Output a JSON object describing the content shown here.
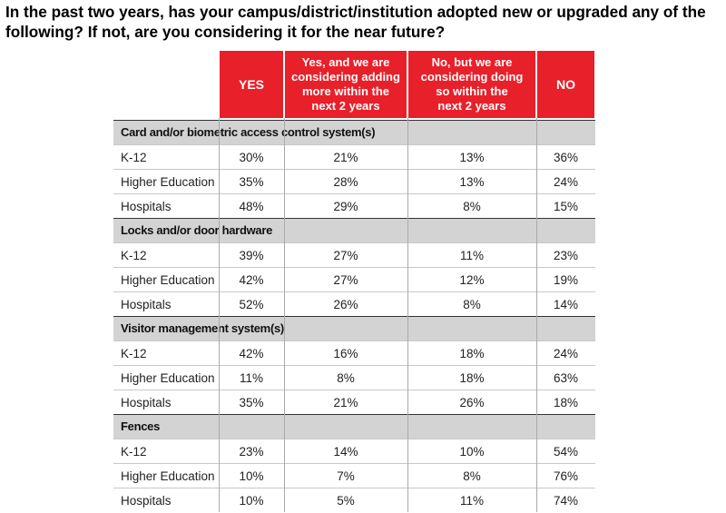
{
  "title": "In the past two years, has your campus/district/institution adopted new or upgraded any of the following?  If not, are you considering it for the near future?",
  "chart_data": {
    "type": "table",
    "columns": [
      "YES",
      "Yes, and we are considering adding more within the next 2 years",
      "No, but we are considering doing so within the next 2 years",
      "NO"
    ],
    "columns_display": [
      "YES",
      "Yes, and we are\nconsidering adding\nmore within the\nnext 2 years",
      "No, but we are\nconsidering doing\nso within the\nnext 2 years",
      "NO"
    ],
    "groups": [
      {
        "name": "Card and/or biometric access control system(s)",
        "rows": [
          {
            "label": "K-12",
            "values": [
              "30%",
              "21%",
              "13%",
              "36%"
            ]
          },
          {
            "label": "Higher Education",
            "values": [
              "35%",
              "28%",
              "13%",
              "24%"
            ]
          },
          {
            "label": "Hospitals",
            "values": [
              "48%",
              "29%",
              "8%",
              "15%"
            ]
          }
        ]
      },
      {
        "name": "Locks and/or door hardware",
        "rows": [
          {
            "label": "K-12",
            "values": [
              "39%",
              "27%",
              "11%",
              "23%"
            ]
          },
          {
            "label": "Higher Education",
            "values": [
              "42%",
              "27%",
              "12%",
              "19%"
            ]
          },
          {
            "label": "Hospitals",
            "values": [
              "52%",
              "26%",
              "8%",
              "14%"
            ]
          }
        ]
      },
      {
        "name": "Visitor management system(s)",
        "rows": [
          {
            "label": "K-12",
            "values": [
              "42%",
              "16%",
              "18%",
              "24%"
            ]
          },
          {
            "label": "Higher Education",
            "values": [
              "11%",
              "8%",
              "18%",
              "63%"
            ]
          },
          {
            "label": "Hospitals",
            "values": [
              "35%",
              "21%",
              "26%",
              "18%"
            ]
          }
        ]
      },
      {
        "name": "Fences",
        "rows": [
          {
            "label": "K-12",
            "values": [
              "23%",
              "14%",
              "10%",
              "54%"
            ]
          },
          {
            "label": "Higher Education",
            "values": [
              "10%",
              "7%",
              "8%",
              "76%"
            ]
          },
          {
            "label": "Hospitals",
            "values": [
              "10%",
              "5%",
              "11%",
              "74%"
            ]
          }
        ]
      }
    ]
  },
  "colors": {
    "header_bg": "#e8202a",
    "header_text": "#ffffff",
    "category_bg": "#d3d3d3"
  }
}
